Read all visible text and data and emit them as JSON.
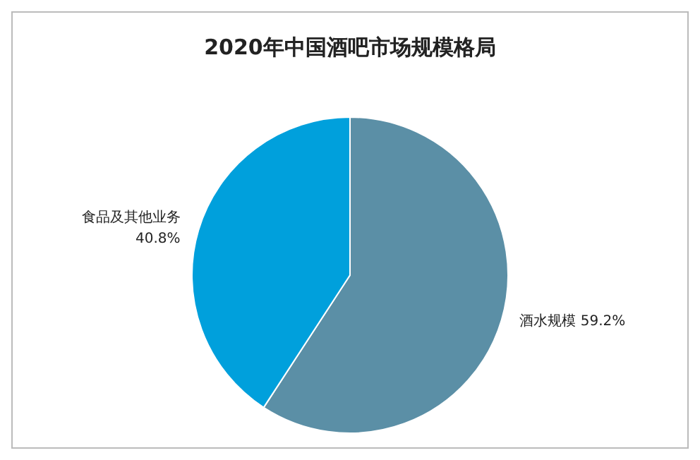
{
  "chart_data": {
    "type": "pie",
    "title": "2020年中国酒吧市场规模格局",
    "categories": [
      "酒水规模",
      "食品及其他业务"
    ],
    "values": [
      59.2,
      40.8
    ],
    "colors": [
      "#5b8fa6",
      "#00a0dc"
    ],
    "value_labels": [
      "59.2%",
      "40.8%"
    ],
    "legend": false
  }
}
